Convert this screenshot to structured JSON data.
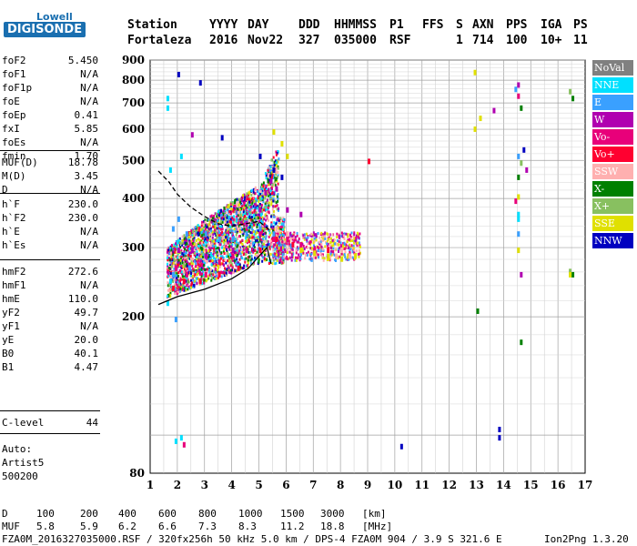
{
  "logo": {
    "top": "Lowell",
    "main": "DIGISONDE"
  },
  "header": {
    "labels": [
      "Station",
      "YYYY",
      "DAY",
      "DDD",
      "HHMMSS",
      "P1",
      "FFS",
      "S",
      "AXN",
      "PPS",
      "IGA",
      "PS"
    ],
    "values": [
      "Fortaleza",
      "2016",
      "Nov22",
      "327",
      "035000",
      "RSF",
      "1",
      "714",
      "100",
      "10+",
      "11"
    ]
  },
  "params": {
    "group1": [
      {
        "name": "foF2",
        "value": "5.450"
      },
      {
        "name": "foF1",
        "value": "N/A"
      },
      {
        "name": "foF1p",
        "value": "N/A"
      },
      {
        "name": "foE",
        "value": "N/A"
      },
      {
        "name": "foEp",
        "value": "0.41"
      },
      {
        "name": "fxI",
        "value": "5.85"
      },
      {
        "name": "foEs",
        "value": "N/A"
      },
      {
        "name": "fmin",
        "value": "1.70"
      }
    ],
    "group2": [
      {
        "name": "MUF(D)",
        "value": "18.78"
      },
      {
        "name": "M(D)",
        "value": "3.45"
      },
      {
        "name": "D",
        "value": "N/A"
      }
    ],
    "group3": [
      {
        "name": "h`F",
        "value": "230.0"
      },
      {
        "name": "h`F2",
        "value": "230.0"
      },
      {
        "name": "h`E",
        "value": "N/A"
      },
      {
        "name": "h`Es",
        "value": "N/A"
      }
    ],
    "group4": [
      {
        "name": "hmF2",
        "value": "272.6"
      },
      {
        "name": "hmF1",
        "value": "N/A"
      },
      {
        "name": "hmE",
        "value": "110.0"
      },
      {
        "name": "yF2",
        "value": "49.7"
      },
      {
        "name": "yF1",
        "value": "N/A"
      },
      {
        "name": "yE",
        "value": "20.0"
      },
      {
        "name": "B0",
        "value": "40.1"
      },
      {
        "name": "B1",
        "value": "4.47"
      }
    ],
    "group5": [
      {
        "name": "C-level",
        "value": "44"
      }
    ]
  },
  "scaling": {
    "line1": "Auto:",
    "line2": "Artist5",
    "line3": "500200"
  },
  "legend": [
    {
      "label": "NoVal",
      "color": "#808080"
    },
    {
      "label": "NNE",
      "color": "#00e0ff"
    },
    {
      "label": "E",
      "color": "#3aa0ff"
    },
    {
      "label": "W",
      "color": "#b000b0"
    },
    {
      "label": "Vo-",
      "color": "#e8007a"
    },
    {
      "label": "Vo+",
      "color": "#ff0030"
    },
    {
      "label": "SSW",
      "color": "#ffb0b0"
    },
    {
      "label": "X-",
      "color": "#008000"
    },
    {
      "label": "X+",
      "color": "#88c060"
    },
    {
      "label": "SSE",
      "color": "#e0e000"
    },
    {
      "label": "NNW",
      "color": "#0000c0"
    }
  ],
  "chart_data": {
    "type": "scatter",
    "xlim": [
      1,
      17
    ],
    "ylim": [
      80,
      900
    ],
    "x_ticks": [
      "1",
      "2",
      "3",
      "4",
      "5",
      "6",
      "7",
      "8",
      "9",
      "10",
      "11",
      "12",
      "13",
      "14",
      "15",
      "16",
      "17"
    ],
    "y_ticks": [
      "80",
      "200",
      "300",
      "400",
      "500",
      "600",
      "700",
      "800",
      "900"
    ],
    "grid": true,
    "y_scale": "log",
    "series": [
      {
        "name": "NNE",
        "color": "#00e0ff",
        "points": [
          [
            1.6,
            730
          ],
          [
            1.6,
            690
          ],
          [
            1.7,
            480
          ],
          [
            2.1,
            520
          ],
          [
            1.7,
            250
          ],
          [
            1.6,
            220
          ],
          [
            14.5,
            360
          ],
          [
            14.5,
            370
          ],
          [
            1.9,
            98
          ],
          [
            2.1,
            100
          ]
        ]
      },
      {
        "name": "E",
        "color": "#3aa0ff",
        "points": [
          [
            1.8,
            340
          ],
          [
            2.0,
            360
          ],
          [
            2.3,
            330
          ],
          [
            3.0,
            330
          ],
          [
            3.5,
            320
          ],
          [
            4.0,
            320
          ],
          [
            4.5,
            330
          ],
          [
            5.0,
            340
          ],
          [
            5.5,
            330
          ],
          [
            14.4,
            770
          ],
          [
            14.5,
            520
          ],
          [
            14.5,
            330
          ],
          [
            2.4,
            270
          ],
          [
            1.8,
            260
          ],
          [
            1.9,
            200
          ]
        ]
      },
      {
        "name": "W",
        "color": "#b000b0",
        "points": [
          [
            2.0,
            300
          ],
          [
            2.5,
            300
          ],
          [
            3.0,
            290
          ],
          [
            4.0,
            300
          ],
          [
            4.5,
            350
          ],
          [
            5.0,
            380
          ],
          [
            5.2,
            420
          ],
          [
            5.4,
            450
          ],
          [
            5.6,
            430
          ],
          [
            6.0,
            380
          ],
          [
            6.5,
            370
          ],
          [
            14.5,
            790
          ],
          [
            13.6,
            680
          ],
          [
            14.8,
            480
          ],
          [
            2.5,
            590
          ],
          [
            14.6,
            260
          ]
        ]
      },
      {
        "name": "Vo-",
        "color": "#e8007a",
        "points": [
          [
            1.9,
            270
          ],
          [
            2.3,
            260
          ],
          [
            3.0,
            260
          ],
          [
            3.5,
            280
          ],
          [
            4.0,
            290
          ],
          [
            4.5,
            300
          ],
          [
            5.0,
            330
          ],
          [
            5.5,
            320
          ],
          [
            6.0,
            320
          ],
          [
            6.5,
            310
          ],
          [
            7.0,
            300
          ],
          [
            14.5,
            740
          ],
          [
            14.4,
            400
          ],
          [
            2.2,
            96
          ]
        ]
      },
      {
        "name": "Vo+",
        "color": "#ff0030",
        "points": [
          [
            1.8,
            240
          ],
          [
            2.2,
            250
          ],
          [
            2.8,
            250
          ],
          [
            3.5,
            260
          ],
          [
            4.2,
            270
          ],
          [
            5.0,
            300
          ],
          [
            5.6,
            320
          ],
          [
            6.2,
            310
          ],
          [
            7.5,
            300
          ],
          [
            9.0,
            505
          ]
        ]
      },
      {
        "name": "SSW",
        "color": "#ffb0b0",
        "points": [
          [
            7.8,
            290
          ],
          [
            8.0,
            300
          ],
          [
            8.3,
            290
          ],
          [
            8.5,
            290
          ],
          [
            5.6,
            340
          ],
          [
            6.0,
            330
          ]
        ]
      },
      {
        "name": "X-",
        "color": "#008000",
        "points": [
          [
            14.6,
            690
          ],
          [
            16.5,
            730
          ],
          [
            13.0,
            210
          ],
          [
            14.6,
            175
          ],
          [
            16.5,
            260
          ],
          [
            14.5,
            460
          ]
        ]
      },
      {
        "name": "X+",
        "color": "#88c060",
        "points": [
          [
            16.4,
            760
          ],
          [
            16.4,
            265
          ],
          [
            14.6,
            500
          ]
        ]
      },
      {
        "name": "SSE",
        "color": "#e0e000",
        "points": [
          [
            5.5,
            600
          ],
          [
            5.8,
            560
          ],
          [
            6.0,
            520
          ],
          [
            6.5,
            300
          ],
          [
            7.0,
            295
          ],
          [
            7.5,
            290
          ],
          [
            8.0,
            285
          ],
          [
            8.5,
            290
          ],
          [
            12.9,
            850
          ],
          [
            13.1,
            650
          ],
          [
            12.9,
            610
          ],
          [
            14.5,
            410
          ],
          [
            14.5,
            300
          ],
          [
            16.4,
            260
          ]
        ]
      },
      {
        "name": "NNW",
        "color": "#0000c0",
        "points": [
          [
            2.0,
            840
          ],
          [
            2.8,
            800
          ],
          [
            3.6,
            580
          ],
          [
            5.0,
            520
          ],
          [
            5.5,
            480
          ],
          [
            5.8,
            460
          ],
          [
            10.2,
            95
          ],
          [
            13.8,
            100
          ],
          [
            13.8,
            105
          ],
          [
            14.7,
            540
          ]
        ]
      }
    ],
    "curves": [
      {
        "name": "profile",
        "points": [
          [
            1.3,
            215
          ],
          [
            2,
            225
          ],
          [
            3,
            235
          ],
          [
            4,
            250
          ],
          [
            4.6,
            265
          ],
          [
            5.0,
            285
          ],
          [
            5.3,
            300
          ],
          [
            5.45,
            272.6
          ]
        ]
      },
      {
        "name": "dashed",
        "points": [
          [
            1.3,
            470
          ],
          [
            1.7,
            440
          ],
          [
            2,
            410
          ],
          [
            2.5,
            380
          ],
          [
            3,
            360
          ],
          [
            3.5,
            345
          ],
          [
            4,
            340
          ],
          [
            4.5,
            345
          ],
          [
            5.0,
            350
          ],
          [
            5.45,
            330
          ]
        ]
      }
    ]
  },
  "bottom": {
    "d_label": "D",
    "d_values": [
      "100",
      "200",
      "400",
      "600",
      "800",
      "1000",
      "1500",
      "3000"
    ],
    "d_unit": "[km]",
    "muf_label": "MUF",
    "muf_values": [
      "5.8",
      "5.9",
      "6.2",
      "6.6",
      "7.3",
      "8.3",
      "11.2",
      "18.8"
    ],
    "muf_unit": "[MHz]",
    "footer_left": "FZA0M_2016327035000.RSF / 320fx256h 50 kHz 5.0 km / DPS-4 FZA0M 904 / 3.9 S 321.6 E",
    "footer_right": "Ion2Png 1.3.20"
  }
}
